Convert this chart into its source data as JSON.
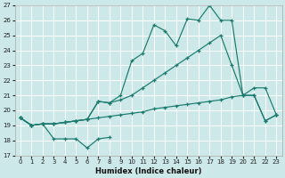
{
  "bg_color": "#cce8e8",
  "grid_color": "#b0d8d8",
  "line_color": "#1a7a6e",
  "xlabel": "Humidex (Indice chaleur)",
  "xlim": [
    -0.5,
    23.5
  ],
  "ylim": [
    17,
    27
  ],
  "yticks": [
    17,
    18,
    19,
    20,
    21,
    22,
    23,
    24,
    25,
    26,
    27
  ],
  "xticks": [
    0,
    1,
    2,
    3,
    4,
    5,
    6,
    7,
    8,
    9,
    10,
    11,
    12,
    13,
    14,
    15,
    16,
    17,
    18,
    19,
    20,
    21,
    22,
    23
  ],
  "series": [
    {
      "x": [
        0,
        1,
        2,
        3,
        4,
        5,
        6,
        7,
        8
      ],
      "y": [
        19.5,
        19.0,
        19.1,
        18.1,
        18.1,
        18.1,
        17.5,
        18.1,
        18.2
      ]
    },
    {
      "x": [
        0,
        1,
        2,
        3,
        4,
        5,
        6,
        7,
        8,
        9,
        10,
        11,
        12,
        13,
        14,
        15,
        16,
        17,
        18,
        19,
        20,
        21,
        22,
        23
      ],
      "y": [
        19.5,
        19.0,
        19.1,
        19.1,
        19.2,
        19.3,
        19.4,
        19.5,
        19.6,
        19.7,
        19.8,
        19.9,
        20.1,
        20.2,
        20.3,
        20.4,
        20.5,
        20.6,
        20.7,
        20.9,
        21.0,
        21.5,
        21.5,
        19.7
      ]
    },
    {
      "x": [
        0,
        1,
        2,
        3,
        4,
        5,
        6,
        7,
        8,
        9,
        10,
        11,
        12,
        13,
        14,
        15,
        16,
        17,
        18,
        19,
        20,
        21,
        22,
        23
      ],
      "y": [
        19.5,
        19.0,
        19.1,
        19.1,
        19.2,
        19.3,
        19.4,
        20.6,
        20.5,
        20.7,
        21.0,
        21.5,
        22.0,
        22.5,
        23.0,
        23.5,
        24.0,
        24.5,
        25.0,
        23.0,
        21.0,
        21.0,
        19.3,
        19.7
      ]
    },
    {
      "x": [
        0,
        1,
        2,
        3,
        4,
        5,
        6,
        7,
        8,
        9,
        10,
        11,
        12,
        13,
        14,
        15,
        16,
        17,
        18,
        19,
        20,
        21,
        22,
        23
      ],
      "y": [
        19.5,
        19.0,
        19.1,
        19.1,
        19.2,
        19.3,
        19.4,
        20.6,
        20.5,
        21.0,
        23.3,
        23.8,
        25.7,
        25.3,
        24.3,
        26.1,
        26.0,
        27.0,
        26.0,
        26.0,
        21.0,
        21.0,
        19.3,
        19.7
      ]
    }
  ]
}
